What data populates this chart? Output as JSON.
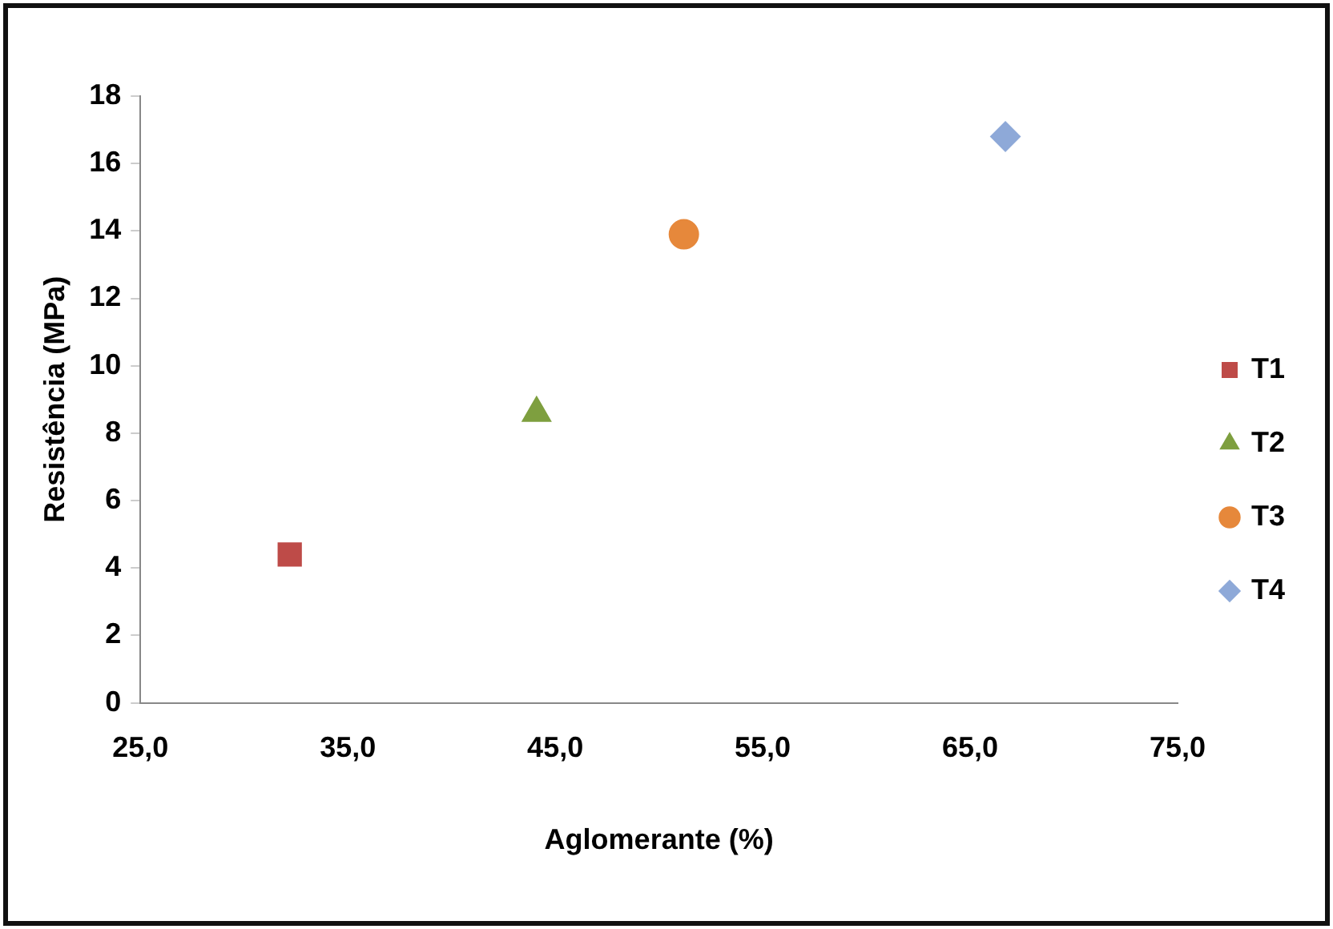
{
  "chart_data": {
    "type": "scatter",
    "xlabel": "Aglomerante (%)",
    "ylabel": "Resistência (MPa)",
    "xlim": [
      25,
      75
    ],
    "xticks": [
      {
        "value": 25,
        "label": "25,0"
      },
      {
        "value": 35,
        "label": "35,0"
      },
      {
        "value": 45,
        "label": "45,0"
      },
      {
        "value": 55,
        "label": "55,0"
      },
      {
        "value": 65,
        "label": "65,0"
      },
      {
        "value": 75,
        "label": "75,0"
      }
    ],
    "ylim": [
      0,
      18
    ],
    "yticks": [
      0,
      2,
      4,
      6,
      8,
      10,
      12,
      14,
      16,
      18
    ],
    "grid": false,
    "legend": "right",
    "series": [
      {
        "name": "T1",
        "color": "#be4b48",
        "marker": "square",
        "x": [
          32.2
        ],
        "values": [
          4.4
        ]
      },
      {
        "name": "T2",
        "color": "#7e9f3f",
        "marker": "triangle",
        "x": [
          44.1
        ],
        "values": [
          8.6
        ]
      },
      {
        "name": "T3",
        "color": "#e6883b",
        "marker": "circle",
        "x": [
          51.2
        ],
        "values": [
          13.9
        ]
      },
      {
        "name": "T4",
        "color": "#8ea9d8",
        "marker": "diamond",
        "x": [
          66.7
        ],
        "values": [
          16.8
        ]
      }
    ]
  }
}
